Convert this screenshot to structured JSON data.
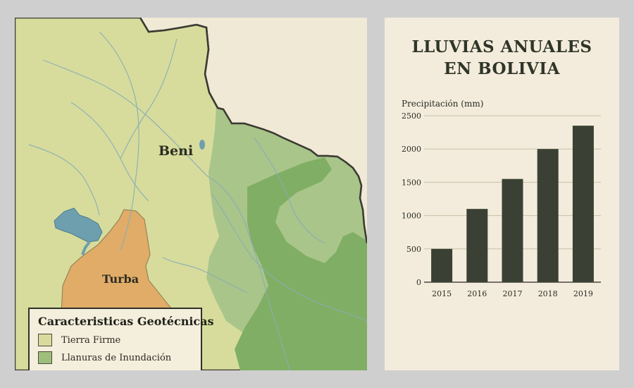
{
  "map": {
    "region_labels": {
      "beni": "Beni",
      "turba": "Turba"
    },
    "legend": {
      "title": "Caracteristicas Geotécnicas",
      "items": [
        {
          "label": "Tierra Firme",
          "color": "#d7dc9c"
        },
        {
          "label": "Llanuras de Inundación",
          "color": "#9ebe7c"
        }
      ]
    },
    "colors": {
      "background": "#f0e9d6",
      "tierra_firme": "#d7dc9c",
      "llanuras": "#a6c486",
      "llanuras_dark": "#7fae63",
      "turba": "#e0ac68",
      "water": "#6d9fae",
      "border": "#3b3b33"
    }
  },
  "chart_title_lines": [
    "LLUVIAS ANUALES",
    "EN BOLIVIA"
  ],
  "chart_data": {
    "type": "bar",
    "title": "LLUVIAS ANUALES EN BOLIVIA",
    "xlabel": "",
    "ylabel": "Precipitación (mm)",
    "categories": [
      "2015",
      "2016",
      "2017",
      "2018",
      "2019"
    ],
    "values": [
      500,
      1100,
      1550,
      2000,
      2350
    ],
    "ylim": [
      0,
      2500
    ],
    "yticks": [
      0,
      500,
      1000,
      1500,
      2000,
      2500
    ],
    "grid": true,
    "bar_color": "#3a4134"
  }
}
